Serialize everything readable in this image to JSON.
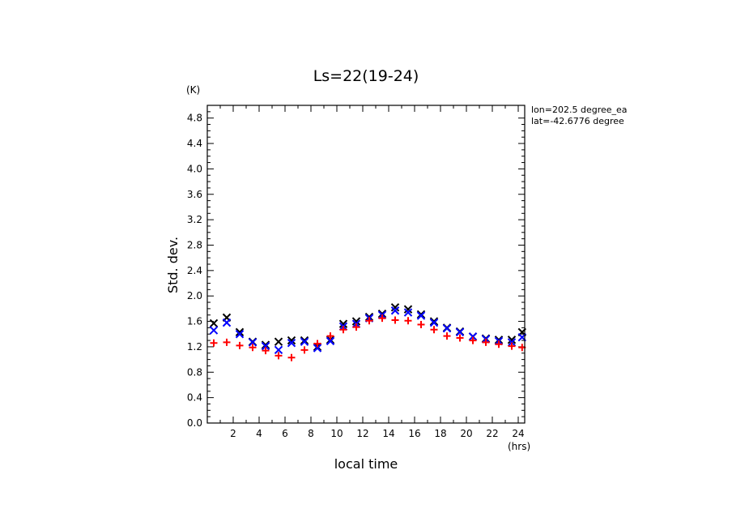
{
  "chart_data": {
    "type": "scatter",
    "title": "Ls=22(19-24)",
    "xlabel": "local time",
    "ylabel": "Std. dev.",
    "x_unit": "(hrs)",
    "y_unit": "(K)",
    "xlim": [
      0,
      24.5
    ],
    "ylim": [
      0,
      5.0
    ],
    "xticks": [
      2,
      4,
      6,
      8,
      10,
      12,
      14,
      16,
      18,
      20,
      22,
      24
    ],
    "yticks": [
      0.0,
      0.4,
      0.8,
      1.2,
      1.6,
      2.0,
      2.4,
      2.8,
      3.2,
      3.6,
      4.0,
      4.4,
      4.8
    ],
    "grid": false,
    "annotations": [
      "lon=202.5 degree_ea",
      "lat=-42.6776 degree"
    ],
    "series": [
      {
        "marker": "x",
        "color": "#000000",
        "x": [
          0.5,
          1.5,
          2.5,
          3.5,
          4.5,
          5.5,
          6.5,
          7.5,
          8.5,
          9.5,
          10.5,
          11.5,
          12.5,
          13.5,
          14.5,
          15.5,
          16.5,
          17.5,
          18.5,
          19.5,
          20.5,
          21.5,
          22.5,
          23.5,
          24.3
        ],
        "values": [
          1.57,
          1.66,
          1.43,
          1.28,
          1.23,
          1.28,
          1.3,
          1.3,
          1.2,
          1.31,
          1.56,
          1.6,
          1.67,
          1.72,
          1.82,
          1.79,
          1.71,
          1.6,
          1.5,
          1.44,
          1.36,
          1.33,
          1.31,
          1.31,
          1.43
        ]
      },
      {
        "marker": "x",
        "color": "#0000ff",
        "x": [
          0.5,
          1.5,
          2.5,
          3.5,
          4.5,
          5.5,
          6.5,
          7.5,
          8.5,
          9.5,
          10.5,
          11.5,
          12.5,
          13.5,
          14.5,
          15.5,
          16.5,
          17.5,
          18.5,
          19.5,
          20.5,
          21.5,
          22.5,
          23.5,
          24.3
        ],
        "values": [
          1.46,
          1.58,
          1.4,
          1.27,
          1.21,
          1.15,
          1.26,
          1.28,
          1.18,
          1.29,
          1.52,
          1.56,
          1.65,
          1.7,
          1.77,
          1.74,
          1.69,
          1.58,
          1.49,
          1.43,
          1.36,
          1.32,
          1.29,
          1.27,
          1.35
        ]
      },
      {
        "marker": "+",
        "color": "#ff0000",
        "x": [
          0.5,
          1.5,
          2.5,
          3.5,
          4.5,
          5.5,
          6.5,
          7.5,
          8.5,
          9.5,
          10.5,
          11.5,
          12.5,
          13.5,
          14.5,
          15.5,
          16.5,
          17.5,
          18.5,
          19.5,
          20.5,
          21.5,
          22.5,
          23.5,
          24.3
        ],
        "values": [
          1.26,
          1.27,
          1.22,
          1.19,
          1.14,
          1.06,
          1.03,
          1.15,
          1.25,
          1.37,
          1.47,
          1.51,
          1.61,
          1.65,
          1.62,
          1.61,
          1.55,
          1.47,
          1.37,
          1.34,
          1.3,
          1.27,
          1.24,
          1.21,
          1.19
        ]
      }
    ]
  }
}
